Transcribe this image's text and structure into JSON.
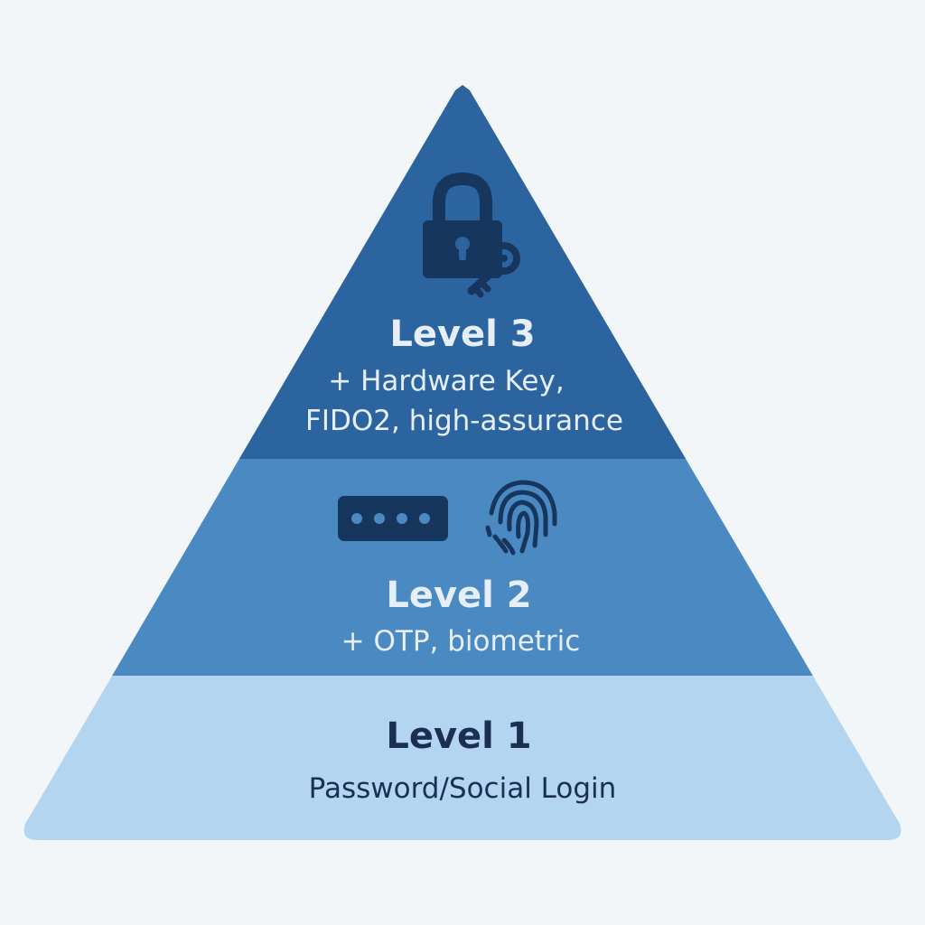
{
  "pyramid": {
    "levels": [
      {
        "key": "level-3",
        "title": "Level 3",
        "description_lines": [
          "+ Hardware Key,",
          "FIDO2, high-assurance"
        ],
        "color": "#2c64a0",
        "text_color": "#e6eef7",
        "icons": [
          "padlock-icon",
          "key-icon"
        ]
      },
      {
        "key": "level-2",
        "title": "Level 2",
        "description_lines": [
          "+ OTP, biometric"
        ],
        "color": "#4a89c2",
        "text_color": "#e6eef7",
        "icons": [
          "otp-code-icon",
          "fingerprint-icon"
        ]
      },
      {
        "key": "level-1",
        "title": "Level 1",
        "description_lines": [
          "Password/Social Login"
        ],
        "color": "#b3d5f0",
        "text_color": "#1b2f52",
        "icons": []
      }
    ],
    "icon_color": "#16365e",
    "background": "#f3f6f9"
  }
}
